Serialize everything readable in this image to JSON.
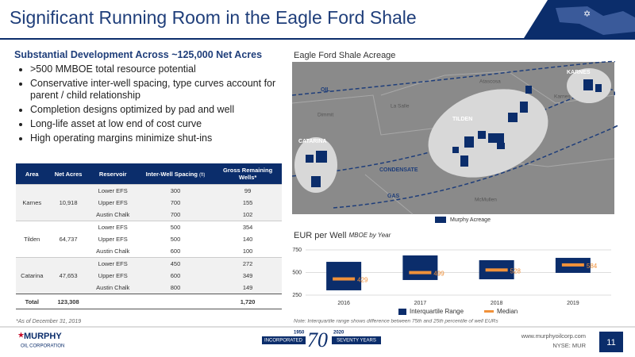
{
  "header": {
    "title": "Significant Running Room in the Eagle Ford Shale"
  },
  "left": {
    "heading": "Substantial Development Across ~125,000 Net Acres",
    "bullets": [
      ">500 MMBOE total resource potential",
      "Conservative inter-well spacing, type curves account for parent / child relationship",
      "Completion designs optimized by pad and well",
      "Long-life asset at low end of cost curve",
      "High operating margins minimize shut-ins"
    ]
  },
  "table": {
    "columns": [
      "Area",
      "Net Acres",
      "Reservoir",
      "Inter-Well Spacing",
      "Gross Remaining Wells*"
    ],
    "spacing_unit": "(ft)",
    "groups": [
      {
        "area": "Karnes",
        "net_acres": "10,918",
        "rows": [
          [
            "Lower EFS",
            "300",
            "99"
          ],
          [
            "Upper EFS",
            "700",
            "155"
          ],
          [
            "Austin Chalk",
            "700",
            "102"
          ]
        ]
      },
      {
        "area": "Tilden",
        "net_acres": "64,737",
        "rows": [
          [
            "Lower EFS",
            "500",
            "354"
          ],
          [
            "Upper EFS",
            "500",
            "140"
          ],
          [
            "Austin Chalk",
            "600",
            "100"
          ]
        ]
      },
      {
        "area": "Catarina",
        "net_acres": "47,653",
        "rows": [
          [
            "Lower EFS",
            "450",
            "272"
          ],
          [
            "Upper EFS",
            "600",
            "349"
          ],
          [
            "Austin Chalk",
            "800",
            "149"
          ]
        ]
      }
    ],
    "total": {
      "label": "Total",
      "net_acres": "123,308",
      "wells": "1,720"
    },
    "footnote": "*As of December 31, 2019"
  },
  "map": {
    "title": "Eagle Ford Shale Acreage",
    "labels": [
      "OIL",
      "CONDENSATE",
      "GAS",
      "Atascosa",
      "La Salle",
      "Dimmit",
      "McMullen",
      "Karnes",
      "TILDEN",
      "CATARINA",
      "KARNES"
    ],
    "legend": "Murphy Acreage"
  },
  "chart_data": {
    "type": "box",
    "title": "EUR per Well",
    "subtitle": "MBOE by Year",
    "categories": [
      "2016",
      "2017",
      "2018",
      "2019"
    ],
    "series": [
      {
        "name": "Interquartile Range",
        "color": "#0b2d6b",
        "low": [
          303,
          417,
          425,
          496
        ],
        "high": [
          618,
          689,
          636,
          662
        ]
      },
      {
        "name": "Median",
        "color": "#f0913a",
        "values": [
          429,
          499,
          528,
          584
        ]
      }
    ],
    "ylim": [
      250,
      750
    ],
    "yticks": [
      250,
      500,
      750
    ],
    "note": "Note: Interquartile range shows difference between 75th and 25th percentile of well EURs"
  },
  "footer": {
    "company": "MURPHY",
    "company_sub": "OIL CORPORATION",
    "year_start": "1950",
    "incorporated": "INCORPORATED",
    "seventy": "70",
    "year_end": "2020",
    "seventy_years": "SEVENTY YEARS",
    "website": "www.murphyoilcorp.com",
    "ticker": "NYSE: MUR",
    "page": "11"
  }
}
